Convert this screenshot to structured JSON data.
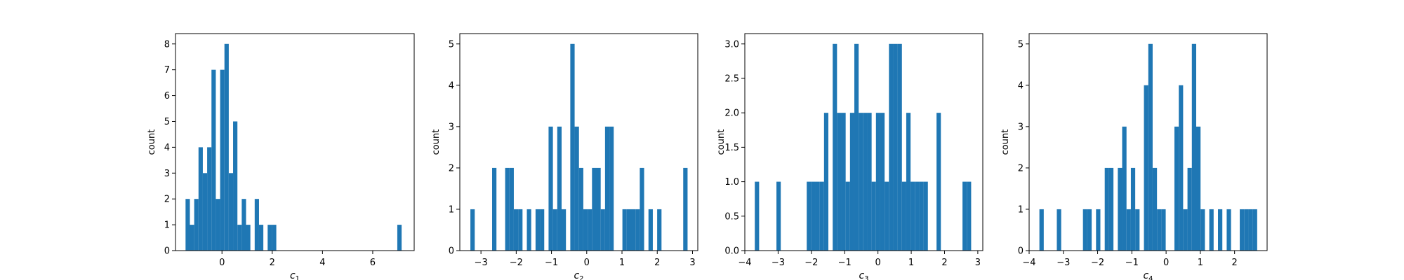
{
  "colors": {
    "bar": "#1f77b4",
    "axis": "#000000",
    "background": "#ffffff"
  },
  "chart_data": [
    {
      "type": "bar",
      "title": "",
      "xlabel": "c",
      "xlabel_sub": "1",
      "ylabel": "count",
      "xlim": [
        -1.85,
        7.65
      ],
      "ylim": [
        0,
        8.4
      ],
      "xticks": [
        0,
        2,
        4,
        6
      ],
      "xtick_labels": [
        "0",
        "2",
        "4",
        "6"
      ],
      "yticks": [
        0,
        1,
        2,
        3,
        4,
        5,
        6,
        7,
        8
      ],
      "ytick_labels": [
        "0",
        "1",
        "2",
        "3",
        "4",
        "5",
        "6",
        "7",
        "8"
      ],
      "bin_start": -1.45,
      "bin_width": 0.172,
      "counts": [
        2,
        1,
        2,
        4,
        3,
        4,
        7,
        2,
        7,
        8,
        3,
        5,
        1,
        2,
        1,
        0,
        2,
        1,
        0,
        1,
        1,
        0,
        0,
        0,
        0,
        0,
        0,
        0,
        0,
        0,
        0,
        0,
        0,
        0,
        0,
        0,
        0,
        0,
        0,
        0,
        0,
        0,
        0,
        0,
        0,
        0,
        0,
        0,
        0,
        1
      ]
    },
    {
      "type": "bar",
      "title": "",
      "xlabel": "c",
      "xlabel_sub": "2",
      "ylabel": "count",
      "xlim": [
        -3.6,
        3.15
      ],
      "ylim": [
        0,
        5.25
      ],
      "xticks": [
        -3,
        -2,
        -1,
        0,
        1,
        2,
        3
      ],
      "xtick_labels": [
        "−3",
        "−2",
        "−1",
        "0",
        "1",
        "2",
        "3"
      ],
      "yticks": [
        0,
        1,
        2,
        3,
        4,
        5
      ],
      "ytick_labels": [
        "0",
        "1",
        "2",
        "3",
        "4",
        "5"
      ],
      "bin_start": -3.3,
      "bin_width": 0.1232,
      "counts": [
        1,
        0,
        0,
        0,
        0,
        2,
        0,
        0,
        2,
        2,
        1,
        1,
        0,
        1,
        0,
        1,
        1,
        0,
        3,
        1,
        3,
        1,
        0,
        5,
        3,
        2,
        1,
        1,
        2,
        2,
        1,
        3,
        3,
        0,
        0,
        1,
        1,
        1,
        1,
        2,
        0,
        1,
        0,
        1,
        0,
        0,
        0,
        0,
        0,
        2
      ]
    },
    {
      "type": "bar",
      "title": "",
      "xlabel": "c",
      "xlabel_sub": "3",
      "ylabel": "count",
      "xlim": [
        -4.0,
        3.15
      ],
      "ylim": [
        0,
        3.15
      ],
      "xticks": [
        -4,
        -3,
        -2,
        -1,
        0,
        1,
        2,
        3
      ],
      "xtick_labels": [
        "−4",
        "−3",
        "−2",
        "−1",
        "0",
        "1",
        "2",
        "3"
      ],
      "yticks": [
        0,
        0.5,
        1.0,
        1.5,
        2.0,
        2.5,
        3.0
      ],
      "ytick_labels": [
        "0.0",
        "0.5",
        "1.0",
        "1.5",
        "2.0",
        "2.5",
        "3.0"
      ],
      "bin_start": -3.7,
      "bin_width": 0.13,
      "counts": [
        1,
        0,
        0,
        0,
        0,
        1,
        0,
        0,
        0,
        0,
        0,
        0,
        1,
        1,
        1,
        1,
        2,
        0,
        3,
        2,
        2,
        1,
        2,
        3,
        2,
        2,
        2,
        1,
        2,
        2,
        1,
        3,
        3,
        3,
        1,
        2,
        1,
        1,
        1,
        1,
        0,
        0,
        2,
        0,
        0,
        0,
        0,
        0,
        1,
        1
      ]
    },
    {
      "type": "bar",
      "title": "",
      "xlabel": "c",
      "xlabel_sub": "4",
      "ylabel": "count",
      "xlim": [
        -4.0,
        2.95
      ],
      "ylim": [
        0,
        5.25
      ],
      "xticks": [
        -4,
        -3,
        -2,
        -1,
        0,
        1,
        2
      ],
      "xtick_labels": [
        "−4",
        "−3",
        "−2",
        "−1",
        "0",
        "1",
        "2"
      ],
      "yticks": [
        0,
        1,
        2,
        3,
        4,
        5
      ],
      "ytick_labels": [
        "0",
        "1",
        "2",
        "3",
        "4",
        "5"
      ],
      "bin_start": -3.7,
      "bin_width": 0.1272,
      "counts": [
        1,
        0,
        0,
        0,
        1,
        0,
        0,
        0,
        0,
        0,
        1,
        1,
        0,
        1,
        0,
        2,
        2,
        0,
        2,
        3,
        1,
        2,
        1,
        0,
        4,
        5,
        2,
        1,
        1,
        0,
        0,
        3,
        4,
        1,
        2,
        5,
        3,
        1,
        0,
        1,
        0,
        1,
        0,
        1,
        0,
        0,
        1,
        1,
        1,
        1
      ]
    }
  ]
}
